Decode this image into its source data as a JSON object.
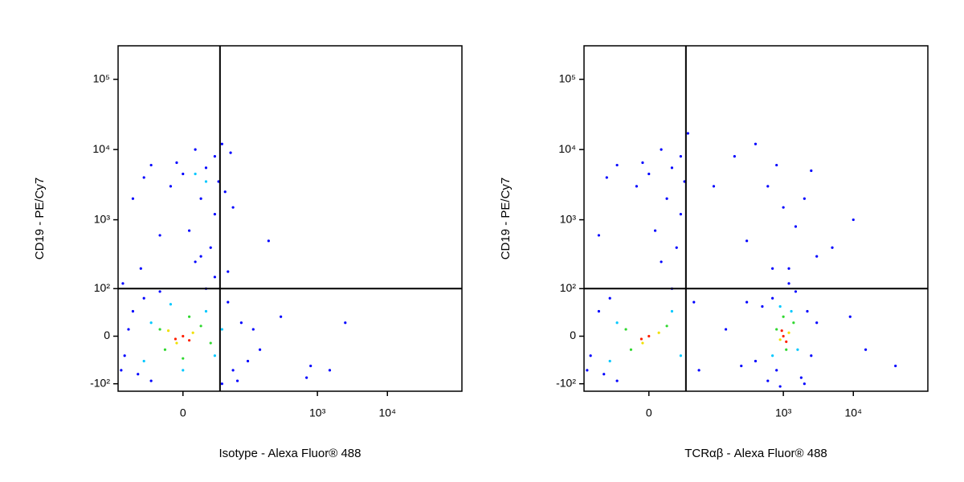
{
  "chart_data": [
    {
      "type": "scatter",
      "x_label": "Isotype - Alexa Fluor® 488",
      "y_label": "CD19 - PE/Cy7",
      "xscale": {
        "type": "biexponential",
        "linear_width": 24
      },
      "yscale": {
        "type": "biexponential",
        "linear_width": 44
      },
      "xlim": [
        -100,
        116000
      ],
      "ylim": [
        -130,
        300000
      ],
      "xticks": [
        0,
        {
          "value": 1000,
          "label": "10³"
        },
        {
          "value": 10000,
          "label": "10⁴"
        }
      ],
      "yticks": [
        {
          "value": -100,
          "label": "-10²"
        },
        0,
        {
          "value": 100,
          "label": "10²"
        },
        {
          "value": 1000,
          "label": "10³"
        },
        {
          "value": 10000,
          "label": "10⁴"
        },
        {
          "value": 100000,
          "label": "10⁵"
        }
      ],
      "gates": {
        "x": 37,
        "y": 100
      },
      "point_groups": [
        {
          "color": "#0000ff",
          "x": [
            -80,
            -60,
            -50,
            -40,
            -30,
            -70,
            60,
            50,
            80,
            100,
            40,
            -20,
            120,
            70,
            -90,
            20,
            30,
            10,
            25,
            5,
            30,
            15,
            -10,
            35,
            0,
            20,
            -5,
            30,
            10,
            40,
            -30,
            -40,
            45,
            -20,
            15,
            50,
            -60,
            -45,
            300,
            800,
            2500,
            700,
            1500,
            200,
            60,
            150,
            -85,
            55
          ],
          "y": [
            -30,
            40,
            -70,
            70,
            -90,
            10,
            -60,
            60,
            20,
            -40,
            -100,
            90,
            10,
            -90,
            -60,
            100,
            150,
            250,
            400,
            700,
            1200,
            2000,
            3000,
            3500,
            4500,
            5500,
            6500,
            8000,
            10000,
            12000,
            6000,
            4000,
            2500,
            600,
            300,
            180,
            2000,
            200,
            30,
            -50,
            20,
            -80,
            -60,
            500,
            1500,
            -20,
            120,
            9000
          ]
        },
        {
          "color": "#00c8ff",
          "x": [
            -30,
            30,
            20,
            -40,
            40,
            0,
            -10,
            10,
            20
          ],
          "y": [
            20,
            -30,
            40,
            -40,
            10,
            -60,
            55,
            4500,
            3500
          ]
        },
        {
          "color": "#30d830",
          "x": [
            -15,
            15,
            -20,
            0,
            25,
            5
          ],
          "y": [
            -20,
            15,
            10,
            -35,
            -10,
            30
          ]
        },
        {
          "color": "#f0e000",
          "x": [
            -5,
            8,
            -12
          ],
          "y": [
            -10,
            5,
            8
          ]
        },
        {
          "color": "#ff2000",
          "x": [
            0,
            -6,
            5
          ],
          "y": [
            0,
            -4,
            -6
          ]
        }
      ]
    },
    {
      "type": "scatter",
      "x_label": "TCRαβ - Alexa Fluor® 488",
      "y_label": "CD19 - PE/Cy7",
      "xscale": {
        "type": "biexponential",
        "linear_width": 24
      },
      "yscale": {
        "type": "biexponential",
        "linear_width": 44
      },
      "xlim": [
        -100,
        116000
      ],
      "ylim": [
        -130,
        300000
      ],
      "xticks": [
        0,
        {
          "value": 1000,
          "label": "10³"
        },
        {
          "value": 10000,
          "label": "10⁴"
        }
      ],
      "yticks": [
        {
          "value": -100,
          "label": "-10²"
        },
        0,
        {
          "value": 100,
          "label": "10²"
        },
        {
          "value": 1000,
          "label": "10³"
        },
        {
          "value": 10000,
          "label": "10⁴"
        },
        {
          "value": 100000,
          "label": "10⁵"
        }
      ],
      "gates": {
        "x": 37,
        "y": 100
      },
      "point_groups": [
        {
          "color": "#0000ff",
          "x": [
            -80,
            -60,
            -50,
            -40,
            -30,
            60,
            50,
            -90,
            20,
            10,
            25,
            5,
            30,
            15,
            -10,
            35,
            0,
            20,
            -5,
            30,
            10,
            -30,
            -45,
            -60,
            40,
            400,
            500,
            600,
            700,
            1800,
            2200,
            2500,
            3000,
            1500,
            900,
            1200,
            800,
            2000,
            150,
            250,
            300,
            300,
            600,
            1000,
            1500,
            2000,
            3000,
            5000,
            800,
            200,
            400,
            1200,
            10000,
            2500,
            700,
            100,
            15000,
            9000,
            40000
          ],
          "y": [
            -30,
            40,
            -70,
            70,
            -90,
            -60,
            60,
            -60,
            100,
            250,
            400,
            700,
            1200,
            2000,
            3000,
            3500,
            4500,
            5500,
            6500,
            8000,
            10000,
            6000,
            4000,
            600,
            17000,
            -40,
            50,
            -90,
            70,
            -80,
            40,
            -30,
            20,
            90,
            -110,
            120,
            -60,
            -100,
            10,
            -50,
            60,
            500,
            3000,
            1500,
            800,
            2000,
            300,
            400,
            6000,
            8000,
            12000,
            200,
            1000,
            5000,
            200,
            3000,
            -20,
            30,
            -50
          ]
        },
        {
          "color": "#00c8ff",
          "x": [
            -30,
            30,
            20,
            -40,
            700,
            1300,
            1600,
            900
          ],
          "y": [
            20,
            -30,
            40,
            -40,
            -30,
            40,
            -20,
            50
          ]
        },
        {
          "color": "#30d830",
          "x": [
            -15,
            15,
            -20,
            800,
            1100,
            1400,
            1000
          ],
          "y": [
            -20,
            15,
            10,
            10,
            -20,
            20,
            30
          ]
        },
        {
          "color": "#f0e000",
          "x": [
            -5,
            8,
            900,
            1200
          ],
          "y": [
            -10,
            5,
            -5,
            5
          ]
        },
        {
          "color": "#ff2000",
          "x": [
            0,
            -6,
            1000,
            1100,
            950
          ],
          "y": [
            0,
            -4,
            0,
            -8,
            8
          ]
        }
      ]
    }
  ]
}
